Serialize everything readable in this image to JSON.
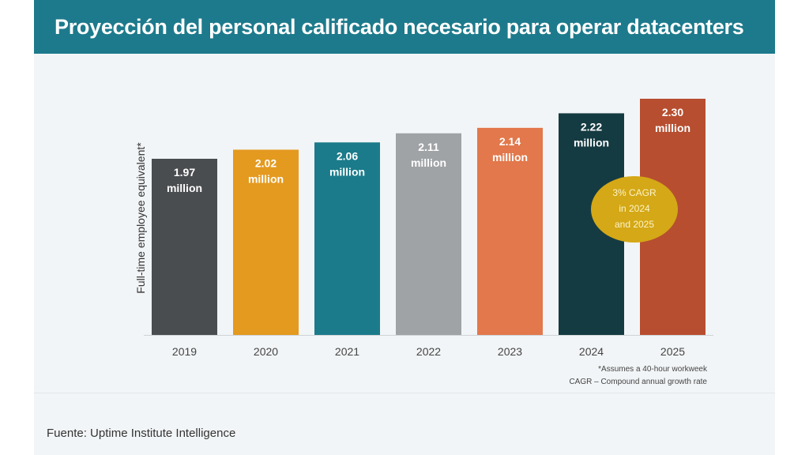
{
  "header": {
    "title": "Proyección del personal calificado necesario para operar datacenters"
  },
  "chart_data": {
    "type": "bar",
    "title": "Proyección del personal calificado necesario para operar datacenters",
    "ylabel": "Full-time employee equivalent*",
    "xlabel": "",
    "categories": [
      "2019",
      "2020",
      "2021",
      "2022",
      "2023",
      "2024",
      "2025"
    ],
    "values": [
      1.97,
      2.02,
      2.06,
      2.11,
      2.14,
      2.22,
      2.3
    ],
    "value_labels": [
      [
        "1.97",
        "million"
      ],
      [
        "2.02",
        "million"
      ],
      [
        "2.06",
        "million"
      ],
      [
        "2.11",
        "million"
      ],
      [
        "2.14",
        "million"
      ],
      [
        "2.22",
        "million"
      ],
      [
        "2.30",
        "million"
      ]
    ],
    "colors": [
      "#4a4d4f",
      "#e49a1f",
      "#1b7b8a",
      "#a0a3a6",
      "#e2784b",
      "#153b42",
      "#b74e30"
    ],
    "label_colors": [
      "#ffffff",
      "#ffffff",
      "#ffffff",
      "#ffffff",
      "#ffffff",
      "#ffffff",
      "#ffffff"
    ],
    "grid": false,
    "legend": "none",
    "annotation": {
      "lines": [
        "3% CAGR",
        "in 2024",
        "and 2025"
      ],
      "color": "#d4a816",
      "text_color": "#fdf3c7"
    },
    "footnotes": [
      "*Assumes a 40-hour workweek",
      "CAGR – Compound annual growth rate"
    ]
  },
  "footer": {
    "source": "Fuente: Uptime Institute Intelligence"
  }
}
